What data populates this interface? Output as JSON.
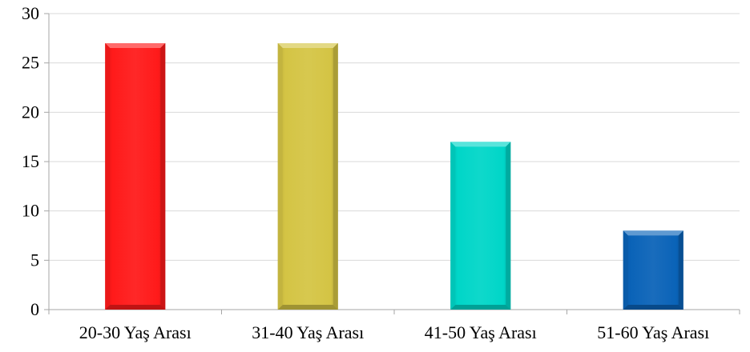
{
  "chart_data": {
    "type": "bar",
    "title": "",
    "xlabel": "",
    "ylabel": "",
    "categories": [
      "20-30 Yaş Arası",
      "31-40 Yaş Arası",
      "41-50 Yaş Arası",
      "51-60 Yaş Arası"
    ],
    "values": [
      27,
      27,
      17,
      8
    ],
    "colors": [
      "#ff1a1a",
      "#d4c444",
      "#00d6c8",
      "#0a63b8"
    ],
    "ylim": [
      0,
      30
    ],
    "yticks": [
      0,
      5,
      10,
      15,
      20,
      25,
      30
    ],
    "grid": true,
    "legend": "none"
  }
}
